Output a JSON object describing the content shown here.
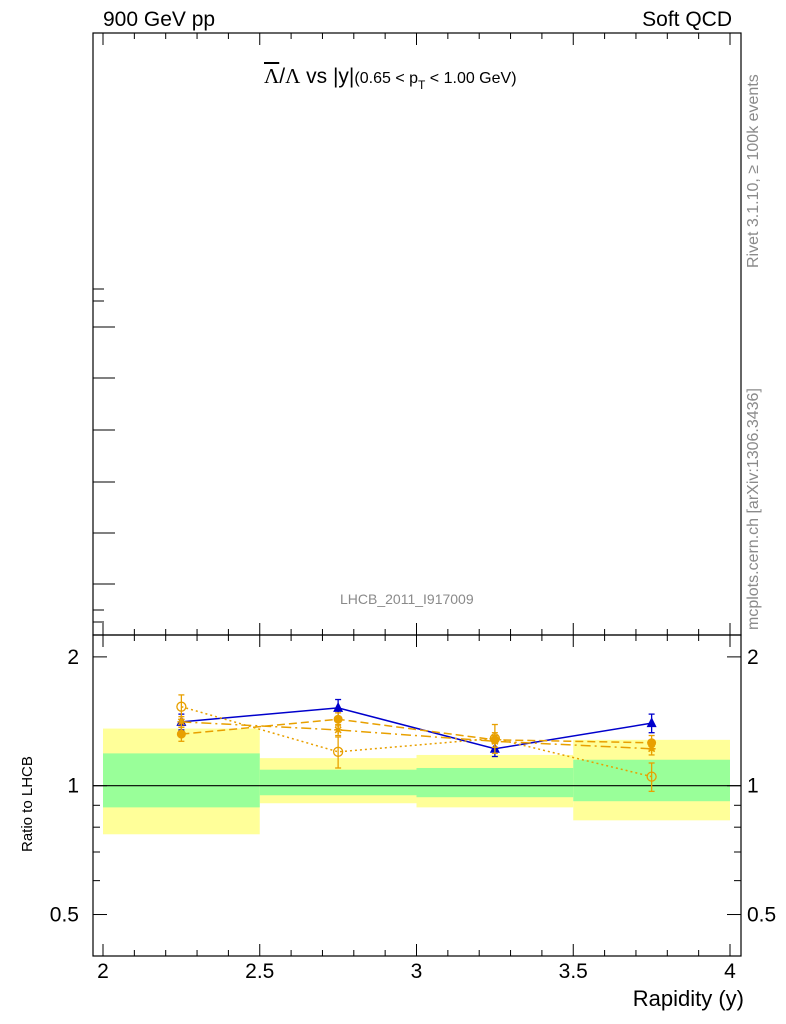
{
  "header": {
    "left": "900 GeV pp",
    "right": "Soft QCD"
  },
  "title": {
    "lambda_bar": "Λ",
    "slash": "/",
    "lambda": "Λ",
    "vs": " vs |y|",
    "range_open": "(0.65 < p",
    "range_sub": "T",
    "range_close": " < 1.00 GeV)"
  },
  "side_text": {
    "rivet": "Rivet 3.1.10, ≥ 100k events",
    "mcplots": "mcplots.cern.ch [arXiv:1306.3436]"
  },
  "analysis_label": "LHCB_2011_I917009",
  "colors": {
    "band_outer": "#ffff99",
    "band_inner": "#99ff99",
    "series_blue": "#0000cc",
    "series_orange": "#e8a000"
  },
  "chart_data": {
    "type": "line",
    "xlabel": "Rapidity (y)",
    "ylabel": "Ratio to LHCB",
    "xlim": [
      2,
      4
    ],
    "ylim": [
      0.4,
      2.25
    ],
    "y_scale": "log",
    "x_ticks": [
      "2",
      "2.5",
      "3",
      "3.5",
      "4"
    ],
    "y_ticks": [
      "0.5",
      "1",
      "2"
    ],
    "reference_line": 1,
    "bins": [
      {
        "lo": 2.0,
        "hi": 2.5,
        "inner": [
          0.89,
          1.19
        ],
        "outer": [
          0.77,
          1.36
        ]
      },
      {
        "lo": 2.5,
        "hi": 3.0,
        "inner": [
          0.95,
          1.09
        ],
        "outer": [
          0.91,
          1.16
        ]
      },
      {
        "lo": 3.0,
        "hi": 3.5,
        "inner": [
          0.94,
          1.1
        ],
        "outer": [
          0.89,
          1.18
        ]
      },
      {
        "lo": 3.5,
        "hi": 4.0,
        "inner": [
          0.92,
          1.15
        ],
        "outer": [
          0.83,
          1.28
        ]
      }
    ],
    "series": [
      {
        "marker": "triangle",
        "style": "solid",
        "color": "#0000cc",
        "x": [
          2.25,
          2.75,
          3.25,
          3.75
        ],
        "y": [
          1.41,
          1.52,
          1.22,
          1.4
        ],
        "err": [
          0.06,
          0.07,
          0.05,
          0.07
        ]
      },
      {
        "marker": "filled-circle",
        "style": "dashed",
        "color": "#e8a000",
        "x": [
          2.25,
          2.75,
          3.25,
          3.75
        ],
        "y": [
          1.32,
          1.43,
          1.28,
          1.26
        ],
        "err": [
          0.05,
          0.05,
          0.05,
          0.05
        ]
      },
      {
        "marker": "star",
        "style": "dashdot",
        "color": "#e8a000",
        "x": [
          2.25,
          2.75,
          3.25,
          3.75
        ],
        "y": [
          1.41,
          1.35,
          1.27,
          1.22
        ],
        "err": [
          0.04,
          0.04,
          0.04,
          0.04
        ]
      },
      {
        "marker": "open-circle",
        "style": "dotted",
        "color": "#e8a000",
        "x": [
          2.25,
          2.75,
          3.25,
          3.75
        ],
        "y": [
          1.53,
          1.2,
          1.29,
          1.05
        ],
        "err": [
          0.1,
          0.1,
          0.1,
          0.08
        ]
      }
    ]
  }
}
